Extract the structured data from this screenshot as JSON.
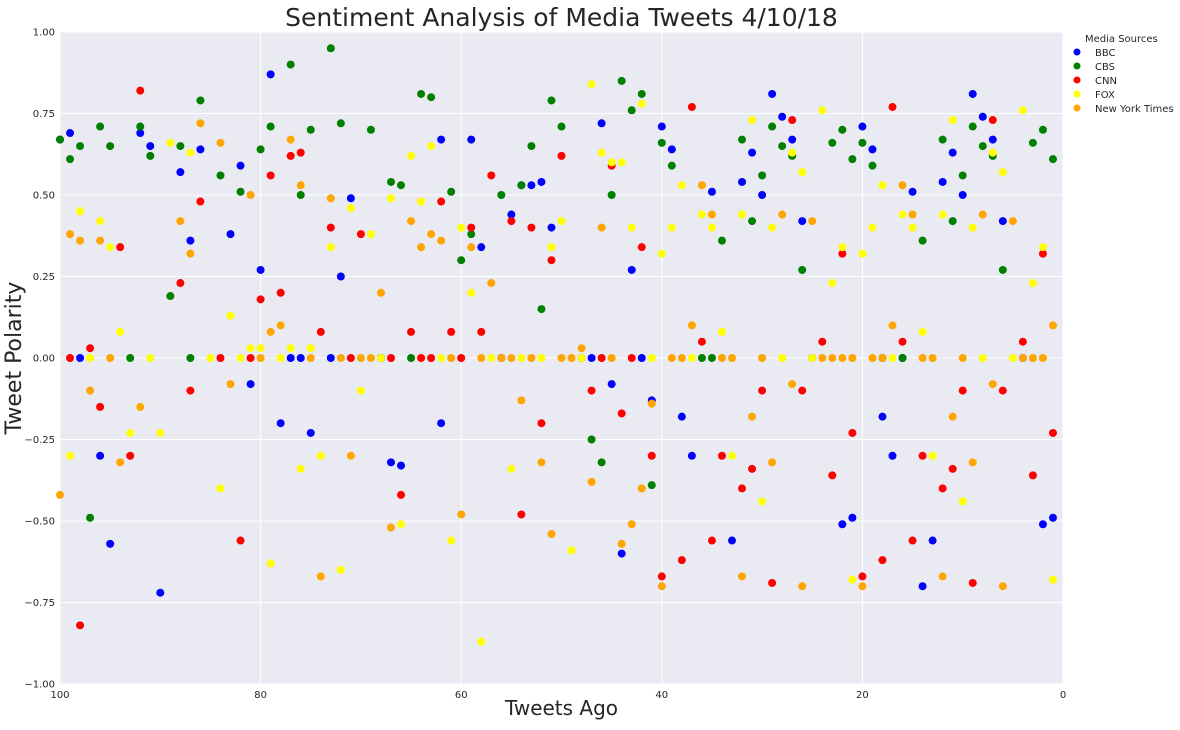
{
  "chart_data": {
    "type": "scatter",
    "title": "Sentiment Analysis of Media Tweets 4/10/18",
    "xlabel": "Tweets Ago",
    "ylabel": "Tweet Polarity",
    "xlim": [
      100,
      0
    ],
    "ylim": [
      -1.0,
      1.0
    ],
    "x_ticks": [
      100,
      80,
      60,
      40,
      20,
      0
    ],
    "x_tick_labels": [
      "100",
      "80",
      "60",
      "40",
      "20",
      "0"
    ],
    "y_ticks": [
      -1.0,
      -0.75,
      -0.5,
      -0.25,
      0.0,
      0.25,
      0.5,
      0.75,
      1.0
    ],
    "y_tick_labels": [
      "−1.00",
      "−0.75",
      "−0.50",
      "−0.25",
      "0.00",
      "0.25",
      "0.50",
      "0.75",
      "1.00"
    ],
    "grid": true,
    "legend": {
      "title": "Media Sources",
      "placement": "outside-top-right"
    },
    "series": [
      {
        "name": "BBC",
        "color": "#0000ff",
        "x": [
          100,
          99,
          98,
          96,
          95,
          92,
          91,
          90,
          88,
          87,
          86,
          83,
          82,
          81,
          80,
          79,
          78,
          77,
          76,
          75,
          73,
          72,
          71,
          68,
          67,
          66,
          62,
          62,
          59,
          58,
          56,
          55,
          54,
          53,
          52,
          51,
          48,
          47,
          46,
          45,
          44,
          43,
          42,
          41,
          40,
          39,
          38,
          37,
          35,
          33,
          32,
          31,
          30,
          29,
          28,
          27,
          26,
          25,
          22,
          21,
          20,
          19,
          18,
          17,
          16,
          15,
          14,
          13,
          12,
          11,
          10,
          9,
          8,
          7,
          6,
          4,
          2,
          1
        ],
        "y": [
          0.67,
          0.69,
          0.0,
          -0.3,
          -0.57,
          0.69,
          0.65,
          -0.72,
          0.57,
          0.36,
          0.64,
          0.38,
          0.59,
          -0.08,
          0.27,
          0.87,
          -0.2,
          0.0,
          0.0,
          -0.23,
          0.0,
          0.25,
          0.49,
          0.0,
          -0.32,
          -0.33,
          0.67,
          -0.2,
          0.67,
          0.34,
          0.0,
          0.44,
          0.53,
          0.53,
          0.54,
          0.4,
          0.0,
          0.0,
          0.72,
          -0.08,
          -0.6,
          0.27,
          0.0,
          -0.13,
          0.71,
          0.64,
          -0.18,
          -0.3,
          0.51,
          -0.56,
          0.54,
          0.63,
          0.5,
          0.81,
          0.74,
          0.67,
          0.42,
          0.0,
          -0.51,
          -0.49,
          0.71,
          0.64,
          -0.18,
          -0.3,
          0.0,
          0.51,
          -0.7,
          -0.56,
          0.54,
          0.63,
          0.5,
          0.81,
          0.74,
          0.67,
          0.42,
          0.0,
          -0.51,
          -0.49
        ]
      },
      {
        "name": "CBS",
        "color": "#008000",
        "x": [
          100,
          99,
          98,
          97,
          96,
          95,
          93,
          92,
          91,
          89,
          88,
          87,
          86,
          84,
          82,
          80,
          79,
          77,
          76,
          75,
          73,
          72,
          69,
          68,
          67,
          66,
          65,
          64,
          63,
          61,
          60,
          59,
          56,
          54,
          53,
          52,
          51,
          50,
          47,
          46,
          45,
          44,
          43,
          42,
          41,
          40,
          39,
          36,
          35,
          34,
          32,
          31,
          30,
          29,
          28,
          27,
          26,
          23,
          22,
          21,
          20,
          19,
          18,
          16,
          14,
          12,
          11,
          10,
          9,
          8,
          7,
          6,
          3,
          2,
          1
        ],
        "y": [
          0.67,
          0.61,
          0.65,
          -0.49,
          0.71,
          0.65,
          0.0,
          0.71,
          0.62,
          0.19,
          0.65,
          0.0,
          0.79,
          0.56,
          0.51,
          0.64,
          0.71,
          0.9,
          0.5,
          0.7,
          0.95,
          0.72,
          0.7,
          0.0,
          0.54,
          0.53,
          0.0,
          0.81,
          0.8,
          0.51,
          0.3,
          0.38,
          0.5,
          0.53,
          0.65,
          0.15,
          0.79,
          0.71,
          -0.25,
          -0.32,
          0.5,
          0.85,
          0.76,
          0.81,
          -0.39,
          0.66,
          0.59,
          0.0,
          0.0,
          0.36,
          0.67,
          0.42,
          0.56,
          0.71,
          0.65,
          0.62,
          0.27,
          0.66,
          0.7,
          0.61,
          0.66,
          0.59,
          0.0,
          0.0,
          0.36,
          0.67,
          0.42,
          0.56,
          0.71,
          0.65,
          0.62,
          0.27,
          0.66,
          0.7,
          0.61
        ]
      },
      {
        "name": "CNN",
        "color": "#ff0000",
        "x": [
          99,
          98,
          97,
          96,
          94,
          93,
          92,
          88,
          87,
          86,
          84,
          82,
          81,
          80,
          79,
          78,
          77,
          76,
          74,
          73,
          71,
          70,
          67,
          66,
          65,
          64,
          63,
          62,
          61,
          60,
          59,
          58,
          57,
          55,
          54,
          53,
          52,
          51,
          50,
          47,
          46,
          45,
          44,
          43,
          42,
          41,
          40,
          38,
          37,
          36,
          35,
          34,
          32,
          31,
          30,
          29,
          27,
          26,
          24,
          23,
          22,
          21,
          20,
          18,
          17,
          16,
          15,
          14,
          12,
          11,
          10,
          9,
          7,
          6,
          4,
          3,
          2,
          1
        ],
        "y": [
          0.0,
          -0.82,
          0.03,
          -0.15,
          0.34,
          -0.3,
          0.82,
          0.23,
          -0.1,
          0.48,
          0.0,
          -0.56,
          0.0,
          0.18,
          0.56,
          0.2,
          0.62,
          0.63,
          0.08,
          0.4,
          0.0,
          0.38,
          0.0,
          -0.42,
          0.08,
          0.0,
          0.0,
          0.48,
          0.08,
          0.0,
          0.4,
          0.08,
          0.56,
          0.42,
          -0.48,
          0.4,
          -0.2,
          0.3,
          0.62,
          -0.1,
          0.0,
          0.59,
          -0.17,
          0.0,
          0.34,
          -0.3,
          -0.67,
          -0.62,
          0.77,
          0.05,
          -0.56,
          -0.3,
          -0.4,
          -0.34,
          -0.1,
          -0.69,
          0.73,
          -0.1,
          0.05,
          -0.36,
          0.32,
          -0.23,
          -0.67,
          -0.62,
          0.77,
          0.05,
          -0.56,
          -0.3,
          -0.4,
          -0.34,
          -0.1,
          -0.69,
          0.73,
          -0.1,
          0.05,
          -0.36,
          0.32,
          -0.23
        ]
      },
      {
        "name": "FOX",
        "color": "#ffff00",
        "x": [
          99,
          98,
          97,
          96,
          95,
          94,
          93,
          91,
          90,
          89,
          87,
          85,
          84,
          83,
          82,
          81,
          80,
          79,
          78,
          77,
          76,
          75,
          74,
          73,
          72,
          71,
          70,
          69,
          68,
          67,
          66,
          65,
          64,
          63,
          62,
          61,
          60,
          59,
          58,
          57,
          55,
          54,
          52,
          51,
          50,
          49,
          48,
          47,
          46,
          45,
          44,
          43,
          42,
          41,
          40,
          39,
          38,
          37,
          36,
          35,
          34,
          33,
          32,
          31,
          30,
          29,
          28,
          27,
          26,
          25,
          24,
          23,
          22,
          21,
          20,
          19,
          18,
          17,
          16,
          15,
          14,
          13,
          12,
          11,
          10,
          9,
          8,
          7,
          6,
          5,
          4,
          3,
          2,
          1
        ],
        "y": [
          -0.3,
          0.45,
          0.0,
          0.42,
          0.34,
          0.08,
          -0.23,
          0.0,
          -0.23,
          0.66,
          0.63,
          0.0,
          -0.4,
          0.13,
          0.0,
          0.03,
          0.03,
          -0.63,
          0.0,
          0.03,
          -0.34,
          0.03,
          -0.3,
          0.34,
          -0.65,
          0.46,
          -0.1,
          0.38,
          0.0,
          0.49,
          -0.51,
          0.62,
          0.48,
          0.65,
          0.0,
          -0.56,
          0.4,
          0.2,
          -0.87,
          0.0,
          -0.34,
          0.0,
          0.0,
          0.34,
          0.42,
          -0.59,
          0.0,
          0.84,
          0.63,
          0.6,
          0.6,
          0.4,
          0.78,
          0.0,
          0.32,
          0.4,
          0.53,
          0.0,
          0.44,
          0.4,
          0.08,
          -0.3,
          0.44,
          0.73,
          -0.44,
          0.4,
          0.0,
          0.63,
          0.57,
          0.0,
          0.76,
          0.23,
          0.34,
          -0.68,
          0.32,
          0.4,
          0.53,
          0.0,
          0.44,
          0.4,
          0.08,
          -0.3,
          0.44,
          0.73,
          -0.44,
          0.4,
          0.0,
          0.63,
          0.57,
          0.0,
          0.76,
          0.23,
          0.34,
          -0.68
        ]
      },
      {
        "name": "New York Times",
        "color": "#ffa500",
        "x": [
          100,
          99,
          98,
          97,
          96,
          95,
          94,
          92,
          88,
          87,
          86,
          84,
          83,
          81,
          80,
          79,
          78,
          77,
          76,
          75,
          74,
          73,
          72,
          71,
          70,
          69,
          68,
          67,
          65,
          64,
          63,
          62,
          61,
          60,
          59,
          58,
          57,
          56,
          55,
          54,
          53,
          52,
          51,
          50,
          49,
          48,
          47,
          46,
          45,
          44,
          43,
          42,
          41,
          40,
          39,
          38,
          37,
          36,
          35,
          34,
          33,
          32,
          31,
          30,
          29,
          28,
          27,
          26,
          25,
          24,
          23,
          22,
          21,
          20,
          19,
          18,
          17,
          16,
          15,
          14,
          13,
          12,
          11,
          10,
          9,
          8,
          7,
          6,
          5,
          4,
          3,
          2,
          1
        ],
        "y": [
          -0.42,
          0.38,
          0.36,
          -0.1,
          0.36,
          0.0,
          -0.32,
          -0.15,
          0.42,
          0.32,
          0.72,
          0.66,
          -0.08,
          0.5,
          0.0,
          0.08,
          0.1,
          0.67,
          0.53,
          0.0,
          -0.67,
          0.49,
          0.0,
          -0.3,
          0.0,
          0.0,
          0.2,
          -0.52,
          0.42,
          0.34,
          0.38,
          0.36,
          0.0,
          -0.48,
          0.34,
          0.0,
          0.23,
          0.0,
          0.0,
          -0.13,
          0.0,
          -0.32,
          -0.54,
          0.0,
          0.0,
          0.03,
          -0.38,
          0.4,
          0.0,
          -0.57,
          -0.51,
          -0.4,
          -0.14,
          -0.7,
          0.0,
          0.0,
          0.1,
          0.53,
          0.44,
          0.0,
          0.0,
          -0.67,
          -0.18,
          0.0,
          -0.32,
          0.44,
          -0.08,
          -0.7,
          0.42,
          0.0,
          0.0,
          0.0,
          0.0,
          -0.7,
          0.0,
          0.0,
          0.1,
          0.53,
          0.44,
          0.0,
          0.0,
          -0.67,
          -0.18,
          0.0,
          -0.32,
          0.44,
          -0.08,
          -0.7,
          0.42,
          0.0,
          0.0,
          0.0,
          0.1
        ]
      }
    ]
  }
}
